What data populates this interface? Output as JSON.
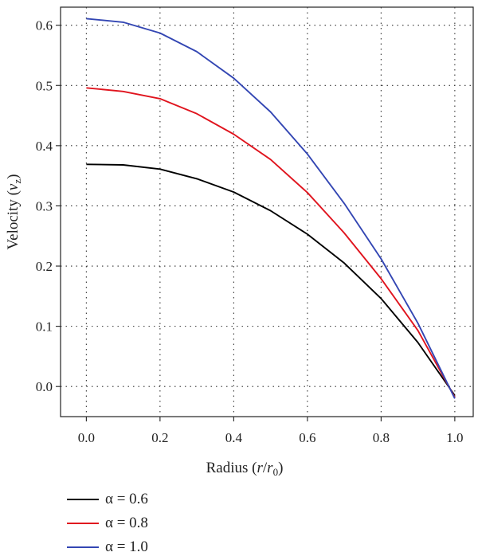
{
  "chart_data": {
    "type": "line",
    "xlabel": "Radius (r/r0)",
    "ylabel": "Velocity (vz)",
    "xlim": [
      -0.07,
      1.05
    ],
    "ylim": [
      -0.05,
      0.63
    ],
    "x_ticks": [
      0.0,
      0.2,
      0.4,
      0.6,
      0.8,
      1.0
    ],
    "y_ticks": [
      0.0,
      0.1,
      0.2,
      0.3,
      0.4,
      0.5,
      0.6
    ],
    "x_tick_labels": [
      "0.0",
      "0.2",
      "0.4",
      "0.6",
      "0.8",
      "1.0"
    ],
    "y_tick_labels": [
      "0.0",
      "0.1",
      "0.2",
      "0.3",
      "0.4",
      "0.5",
      "0.6"
    ],
    "grid": true,
    "legend_position": "bottom-left, below plot",
    "x": [
      0.0,
      0.1,
      0.2,
      0.3,
      0.4,
      0.5,
      0.6,
      0.7,
      0.8,
      0.9,
      1.0
    ],
    "series": [
      {
        "name": "α = 0.6",
        "color": "#000000",
        "values": [
          0.369,
          0.368,
          0.361,
          0.345,
          0.323,
          0.292,
          0.253,
          0.205,
          0.146,
          0.073,
          -0.015
        ]
      },
      {
        "name": "α = 0.8",
        "color": "#e0141e",
        "values": [
          0.496,
          0.49,
          0.478,
          0.453,
          0.419,
          0.377,
          0.322,
          0.255,
          0.179,
          0.093,
          -0.018
        ]
      },
      {
        "name": "α = 1.0",
        "color": "#3346b3",
        "values": [
          0.611,
          0.605,
          0.587,
          0.556,
          0.512,
          0.456,
          0.386,
          0.304,
          0.212,
          0.105,
          -0.02
        ]
      }
    ]
  }
}
